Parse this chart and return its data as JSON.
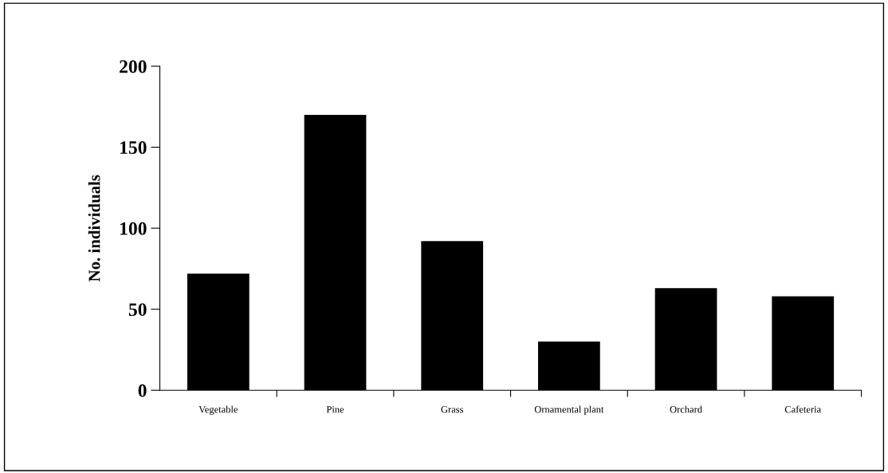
{
  "chart_data": {
    "type": "bar",
    "ylabel": "No. individuals",
    "categories": [
      "Vegetable",
      "Pine",
      "Grass",
      "Ornamental plant",
      "Orchard",
      "Cafeteria"
    ],
    "values": [
      72,
      170,
      92,
      30,
      63,
      58
    ],
    "color": "#000000",
    "ylim": [
      0,
      200
    ],
    "yticks": [
      0,
      50,
      100,
      150,
      200
    ],
    "grid": false,
    "legend": false
  }
}
